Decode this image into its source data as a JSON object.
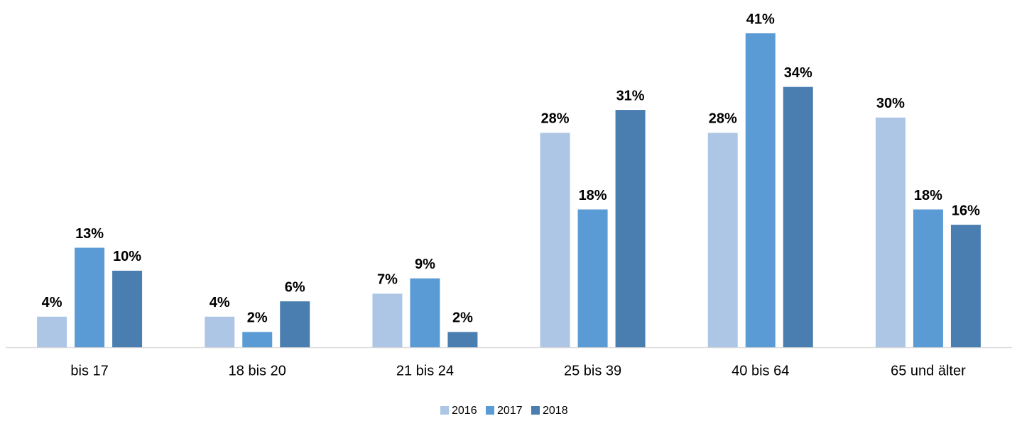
{
  "chart_data": {
    "type": "bar",
    "categories": [
      "bis 17",
      "18 bis 20",
      "21 bis 24",
      "25 bis 39",
      "40 bis 64",
      "65 und älter"
    ],
    "series": [
      {
        "name": "2016",
        "color": "#adc6e5",
        "values": [
          4,
          4,
          7,
          28,
          28,
          30
        ],
        "value_labels": [
          "4%",
          "4%",
          "7%",
          "28%",
          "28%",
          "30%"
        ]
      },
      {
        "name": "2017",
        "color": "#5b9bd5",
        "values": [
          13,
          2,
          9,
          18,
          41,
          18
        ],
        "value_labels": [
          "13%",
          "2%",
          "9%",
          "18%",
          "41%",
          "18%"
        ]
      },
      {
        "name": "2018",
        "color": "#4a7eb0",
        "values": [
          10,
          6,
          2,
          31,
          34,
          16
        ],
        "value_labels": [
          "10%",
          "6%",
          "2%",
          "31%",
          "34%",
          "16%"
        ]
      }
    ],
    "legend": "bottom"
  }
}
